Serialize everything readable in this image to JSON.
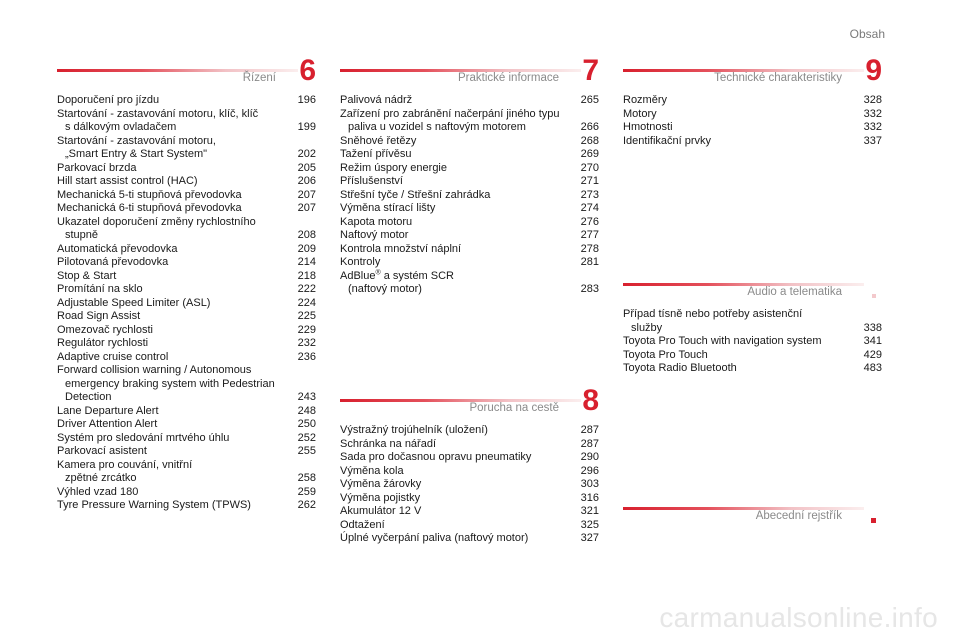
{
  "header": {
    "title": "Obsah"
  },
  "sections": {
    "rizeni": {
      "title": "Řízení",
      "number": "6",
      "items": [
        {
          "main": "Doporučení pro jízdu",
          "sub": "",
          "page": "196"
        },
        {
          "main": "Startování - zastavování motoru, klíč, klíč",
          "sub": "s dálkovým ovladačem",
          "page": "199"
        },
        {
          "main": "Startování - zastavování motoru,",
          "sub": "„Smart Entry & Start System\"",
          "page": "202"
        },
        {
          "main": "Parkovací brzda",
          "sub": "",
          "page": "205"
        },
        {
          "main": "Hill start assist control (HAC)",
          "sub": "",
          "page": "206"
        },
        {
          "main": "Mechanická 5-ti stupňová převodovka",
          "sub": "",
          "page": "207"
        },
        {
          "main": "Mechanická 6-ti stupňová převodovka",
          "sub": "",
          "page": "207"
        },
        {
          "main": "Ukazatel doporučení změny rychlostního",
          "sub": "stupně",
          "page": "208"
        },
        {
          "main": "Automatická převodovka",
          "sub": "",
          "page": "209"
        },
        {
          "main": "Pilotovaná převodovka",
          "sub": "",
          "page": "214"
        },
        {
          "main": "Stop & Start",
          "sub": "",
          "page": "218"
        },
        {
          "main": "Promítání na sklo",
          "sub": "",
          "page": "222"
        },
        {
          "main": "Adjustable Speed Limiter (ASL)",
          "sub": "",
          "page": "224"
        },
        {
          "main": "Road Sign Assist",
          "sub": "",
          "page": "225"
        },
        {
          "main": "Omezovač rychlosti",
          "sub": "",
          "page": "229"
        },
        {
          "main": "Regulátor rychlosti",
          "sub": "",
          "page": "232"
        },
        {
          "main": "Adaptive cruise control",
          "sub": "",
          "page": "236"
        },
        {
          "main": "Forward collision warning / Autonomous",
          "sub": "emergency braking system with Pedestrian\nDetection",
          "page": "243"
        },
        {
          "main": "Lane Departure Alert",
          "sub": "",
          "page": "248"
        },
        {
          "main": "Driver Attention Alert",
          "sub": "",
          "page": "250"
        },
        {
          "main": "Systém pro sledování mrtvého úhlu",
          "sub": "",
          "page": "252"
        },
        {
          "main": "Parkovací asistent",
          "sub": "",
          "page": "255"
        },
        {
          "main": "Kamera pro couvání, vnitřní",
          "sub": "zpětné zrcátko",
          "page": "258"
        },
        {
          "main": "Výhled vzad 180",
          "sub": "",
          "page": "259"
        },
        {
          "main": "Tyre Pressure Warning System (TPWS)",
          "sub": "",
          "page": "262"
        }
      ]
    },
    "prakticke": {
      "title": "Praktické informace",
      "number": "7",
      "items": [
        {
          "main": "Palivová nádrž",
          "sub": "",
          "page": "265"
        },
        {
          "main": "Zařízení pro zabránění načerpání jiného typu",
          "sub": "paliva u vozidel s naftovým motorem",
          "page": "266"
        },
        {
          "main": "Sněhové řetězy",
          "sub": "",
          "page": "268"
        },
        {
          "main": "Tažení přívěsu",
          "sub": "",
          "page": "269"
        },
        {
          "main": "Režim úspory energie",
          "sub": "",
          "page": "270"
        },
        {
          "main": "Příslušenství",
          "sub": "",
          "page": "271"
        },
        {
          "main": "Střešní tyče / Střešní zahrádka",
          "sub": "",
          "page": "273"
        },
        {
          "main": "Výměna stírací lišty",
          "sub": "",
          "page": "274"
        },
        {
          "main": "Kapota motoru",
          "sub": "",
          "page": "276"
        },
        {
          "main": "Naftový motor",
          "sub": "",
          "page": "277"
        },
        {
          "main": "Kontrola množství náplní",
          "sub": "",
          "page": "278"
        },
        {
          "main": "Kontroly",
          "sub": "",
          "page": "281"
        },
        {
          "main": "AdBlue",
          "sup": "®",
          "main_after": " a systém SCR",
          "sub": "(naftový motor)",
          "page": "283"
        }
      ]
    },
    "porucha": {
      "title": "Porucha na cestě",
      "number": "8",
      "items": [
        {
          "main": "Výstražný trojúhelník (uložení)",
          "sub": "",
          "page": "287"
        },
        {
          "main": "Schránka na nářadí",
          "sub": "",
          "page": "287"
        },
        {
          "main": "Sada pro dočasnou opravu pneumatiky",
          "sub": "",
          "page": "290"
        },
        {
          "main": "Výměna kola",
          "sub": "",
          "page": "296"
        },
        {
          "main": "Výměna žárovky",
          "sub": "",
          "page": "303"
        },
        {
          "main": "Výměna pojistky",
          "sub": "",
          "page": "316"
        },
        {
          "main": "Akumulátor 12 V",
          "sub": "",
          "page": "321"
        },
        {
          "main": "Odtažení",
          "sub": "",
          "page": "325"
        },
        {
          "main": "Úplné vyčerpání paliva (naftový motor)",
          "sub": "",
          "page": "327"
        }
      ]
    },
    "technicke": {
      "title": "Technické charakteristiky",
      "number": "9",
      "items": [
        {
          "main": "Rozměry",
          "sub": "",
          "page": "328"
        },
        {
          "main": "Motory",
          "sub": "",
          "page": "332"
        },
        {
          "main": "Hmotnosti",
          "sub": "",
          "page": "332"
        },
        {
          "main": "Identifikační prvky",
          "sub": "",
          "page": "337"
        }
      ]
    },
    "audio": {
      "title": "Audio a telematika",
      "items": [
        {
          "main": "Případ tísně nebo potřeby asistenční",
          "sub": "služby",
          "page": "338"
        },
        {
          "main": "Toyota Pro Touch with navigation system",
          "sub": "",
          "page": "341"
        },
        {
          "main": "Toyota Pro Touch",
          "sub": "",
          "page": "429"
        },
        {
          "main": "Toyota Radio Bluetooth",
          "sub": "",
          "page": "483"
        }
      ]
    },
    "rejstrik": {
      "title": "Abecední rejstřík"
    }
  },
  "watermark": "carmanualsonline.info",
  "colors": {
    "accent": "#d8202e",
    "muted": "#8a8a8a"
  }
}
